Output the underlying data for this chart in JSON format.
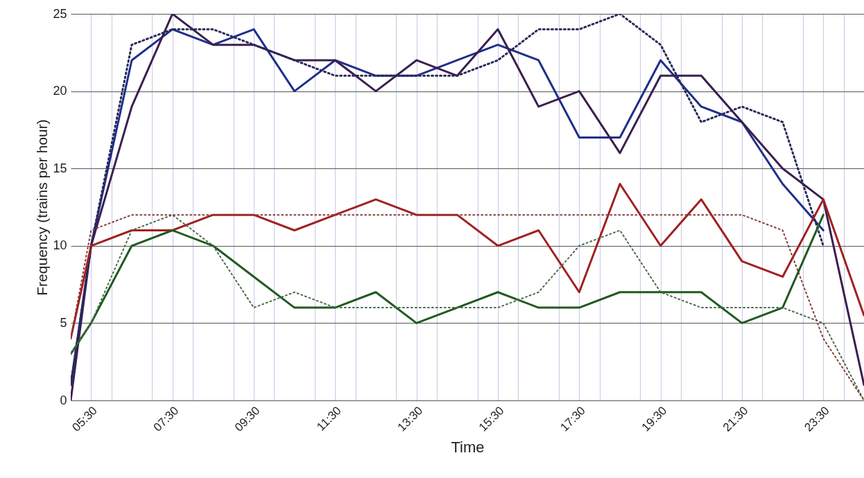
{
  "chart_data": {
    "type": "line",
    "xlabel": "Time",
    "ylabel": "Frequency (trains per hour)",
    "x": [
      5,
      5.5,
      6.5,
      7.5,
      8.5,
      9.5,
      10.5,
      11.5,
      12.5,
      13.5,
      14.5,
      15.5,
      16.5,
      17.5,
      18.5,
      19.5,
      20.5,
      21.5,
      22.5,
      23.5,
      24.5
    ],
    "series": [
      {
        "color": "#1f2f8a",
        "line_style": "solid",
        "values": [
          1,
          10,
          22,
          24,
          23,
          24,
          20,
          22,
          21,
          21,
          22,
          23,
          22,
          17,
          17,
          22,
          19,
          18,
          14,
          11,
          null
        ]
      },
      {
        "color": "#3a1f4f",
        "line_style": "solid",
        "values": [
          0,
          10,
          19,
          25,
          23,
          23,
          22,
          22,
          20,
          22,
          21,
          24,
          19,
          20,
          16,
          21,
          21,
          18,
          15,
          13,
          1
        ]
      },
      {
        "color": "#2a2a5a",
        "line_style": "dotted",
        "values": [
          1,
          10,
          23,
          24,
          24,
          23,
          22,
          21,
          21,
          21,
          21,
          22,
          24,
          24,
          25,
          23,
          18,
          19,
          18,
          10,
          null
        ]
      },
      {
        "color": "#a02020",
        "line_style": "solid",
        "values": [
          4,
          10,
          11,
          11,
          12,
          12,
          11,
          12,
          13,
          12,
          12,
          10,
          11,
          7,
          14,
          10,
          13,
          9,
          8,
          13,
          5.5
        ]
      },
      {
        "color": "#8a3a3a",
        "line_style": "dotted",
        "values": [
          4,
          11,
          12,
          12,
          12,
          12,
          12,
          12,
          12,
          12,
          12,
          12,
          12,
          12,
          12,
          12,
          12,
          12,
          11,
          4,
          0
        ]
      },
      {
        "color": "#1f5a1f",
        "line_style": "solid",
        "values": [
          3,
          5,
          10,
          11,
          10,
          8,
          6,
          6,
          7,
          5,
          6,
          7,
          6,
          6,
          7,
          7,
          7,
          5,
          6,
          12,
          null
        ]
      },
      {
        "color": "#4a6a4a",
        "line_style": "dotted",
        "values": [
          3,
          5,
          11,
          12,
          10,
          6,
          7,
          6,
          6,
          6,
          6,
          6,
          7,
          10,
          11,
          7,
          6,
          6,
          6,
          5,
          0
        ]
      }
    ],
    "xlim": [
      5,
      24.5
    ],
    "ylim": [
      0,
      25
    ],
    "xticks": [
      {
        "value": 5.5,
        "label": "05:30"
      },
      {
        "value": 6,
        "label": null
      },
      {
        "value": 7,
        "label": null
      },
      {
        "value": 7.5,
        "label": "07:30"
      },
      {
        "value": 8,
        "label": null
      },
      {
        "value": 9,
        "label": null
      },
      {
        "value": 9.5,
        "label": "09:30"
      },
      {
        "value": 10,
        "label": null
      },
      {
        "value": 11,
        "label": null
      },
      {
        "value": 11.5,
        "label": "11:30"
      },
      {
        "value": 12,
        "label": null
      },
      {
        "value": 13,
        "label": null
      },
      {
        "value": 13.5,
        "label": "13:30"
      },
      {
        "value": 14,
        "label": null
      },
      {
        "value": 15,
        "label": null
      },
      {
        "value": 15.5,
        "label": "15:30"
      },
      {
        "value": 16,
        "label": null
      },
      {
        "value": 17,
        "label": null
      },
      {
        "value": 17.5,
        "label": "17:30"
      },
      {
        "value": 18,
        "label": null
      },
      {
        "value": 19,
        "label": null
      },
      {
        "value": 19.5,
        "label": "19:30"
      },
      {
        "value": 20,
        "label": null
      },
      {
        "value": 21,
        "label": null
      },
      {
        "value": 21.5,
        "label": "21:30"
      },
      {
        "value": 22,
        "label": null
      },
      {
        "value": 23,
        "label": null
      },
      {
        "value": 23.5,
        "label": "23:30"
      },
      {
        "value": 24,
        "label": null
      }
    ],
    "yticks": [
      0,
      5,
      10,
      15,
      20,
      25
    ],
    "grid": true
  }
}
